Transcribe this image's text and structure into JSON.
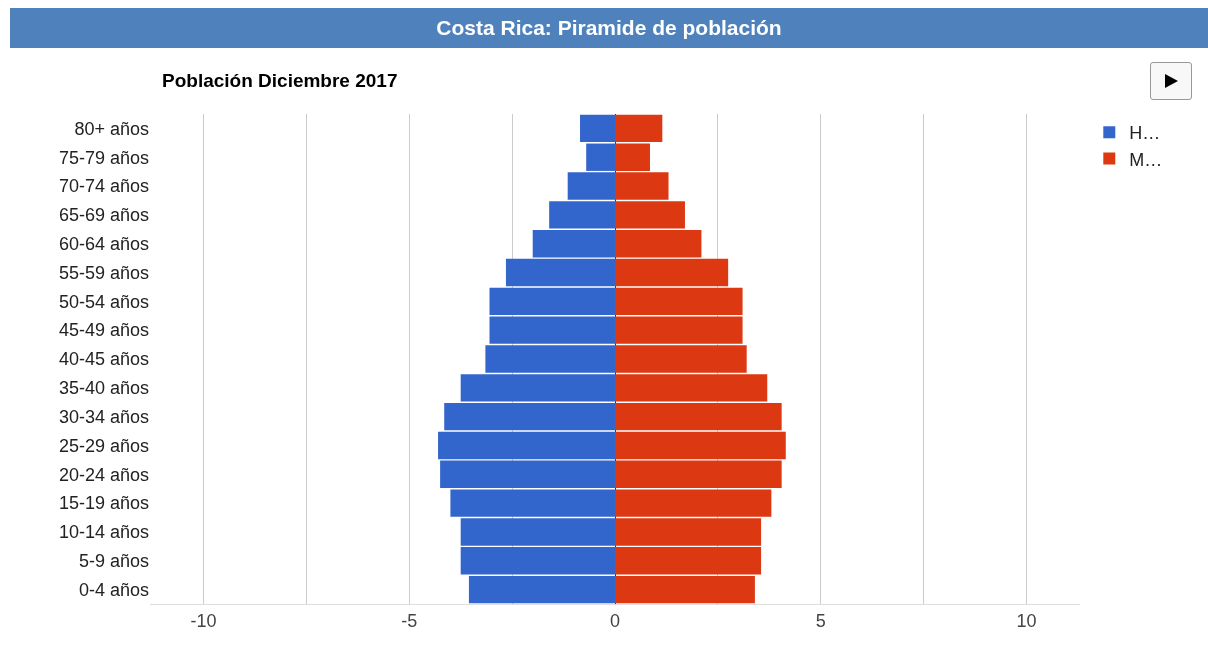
{
  "chart_data": {
    "type": "bar",
    "orientation": "horizontal",
    "title": "Costa Rica: Piramide de población",
    "subtitle": "Población Diciembre 2017",
    "categories": [
      "80+ años",
      "75-79 años",
      "70-74 años",
      "65-69 años",
      "60-64 años",
      "55-59 años",
      "50-54 años",
      "45-49 años",
      "40-45 años",
      "35-40 años",
      "30-34 años",
      "25-29 años",
      "20-24 años",
      "15-19 años",
      "10-14 años",
      "5-9 años",
      "0-4 años"
    ],
    "series": [
      {
        "name": "H…",
        "color": "#3366cc",
        "values": [
          -0.85,
          -0.7,
          -1.15,
          -1.6,
          -2.0,
          -2.65,
          -3.05,
          -3.05,
          -3.15,
          -3.75,
          -4.15,
          -4.3,
          -4.25,
          -4.0,
          -3.75,
          -3.75,
          -3.55
        ]
      },
      {
        "name": "M…",
        "color": "#dc3912",
        "values": [
          1.15,
          0.85,
          1.3,
          1.7,
          2.1,
          2.75,
          3.1,
          3.1,
          3.2,
          3.7,
          4.05,
          4.15,
          4.05,
          3.8,
          3.55,
          3.55,
          3.4
        ]
      }
    ],
    "xlim": [
      -11.3,
      11.3
    ],
    "xticks": [
      -10,
      {
        "value": -7.5,
        "label": null
      },
      -5,
      {
        "value": -2.5,
        "label": null
      },
      0,
      {
        "value": 2.5,
        "label": null
      },
      5,
      {
        "value": 7.5,
        "label": null
      },
      10
    ],
    "grid": "x",
    "legend": "top right",
    "stacked": true
  }
}
